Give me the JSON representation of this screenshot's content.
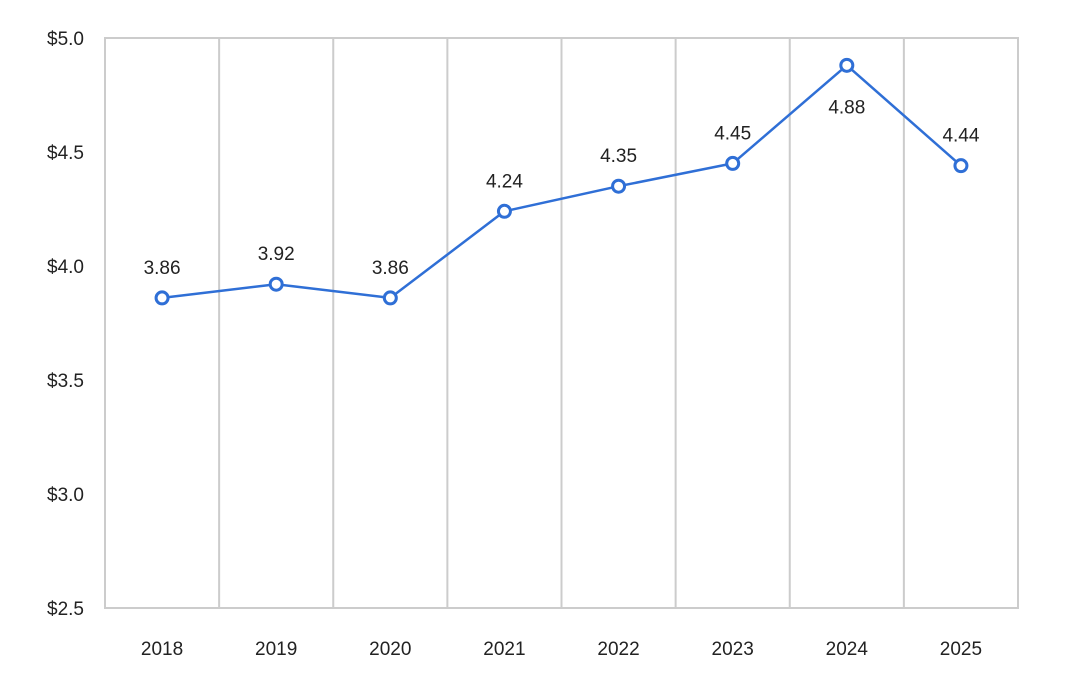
{
  "chart_data": {
    "type": "line",
    "title": "",
    "xlabel": "",
    "ylabel": "",
    "categories": [
      "2018",
      "2019",
      "2020",
      "2021",
      "2022",
      "2023",
      "2024",
      "2025"
    ],
    "series": [
      {
        "values": [
          3.86,
          3.92,
          3.86,
          4.24,
          4.35,
          4.45,
          4.88,
          4.44
        ],
        "data_labels": [
          "3.86",
          "3.92",
          "3.86",
          "4.24",
          "4.35",
          "4.45",
          "4.88",
          "4.44"
        ],
        "color": "#2f6fd6"
      }
    ],
    "ylim": [
      2.5,
      5.0
    ],
    "y_ticks": [
      5.0,
      4.5,
      4.0,
      3.5,
      3.0,
      2.5
    ],
    "y_tick_labels": [
      "$5.0",
      "$4.5",
      "$4.0",
      "$3.5",
      "$3.0",
      "$2.5"
    ],
    "grid": "vertical",
    "legend": "none",
    "colors": {
      "grid": "#cccccc",
      "frame": "#cccccc",
      "line": "#2f6fd6",
      "marker_fill": "#ffffff",
      "text": "#222222"
    }
  }
}
